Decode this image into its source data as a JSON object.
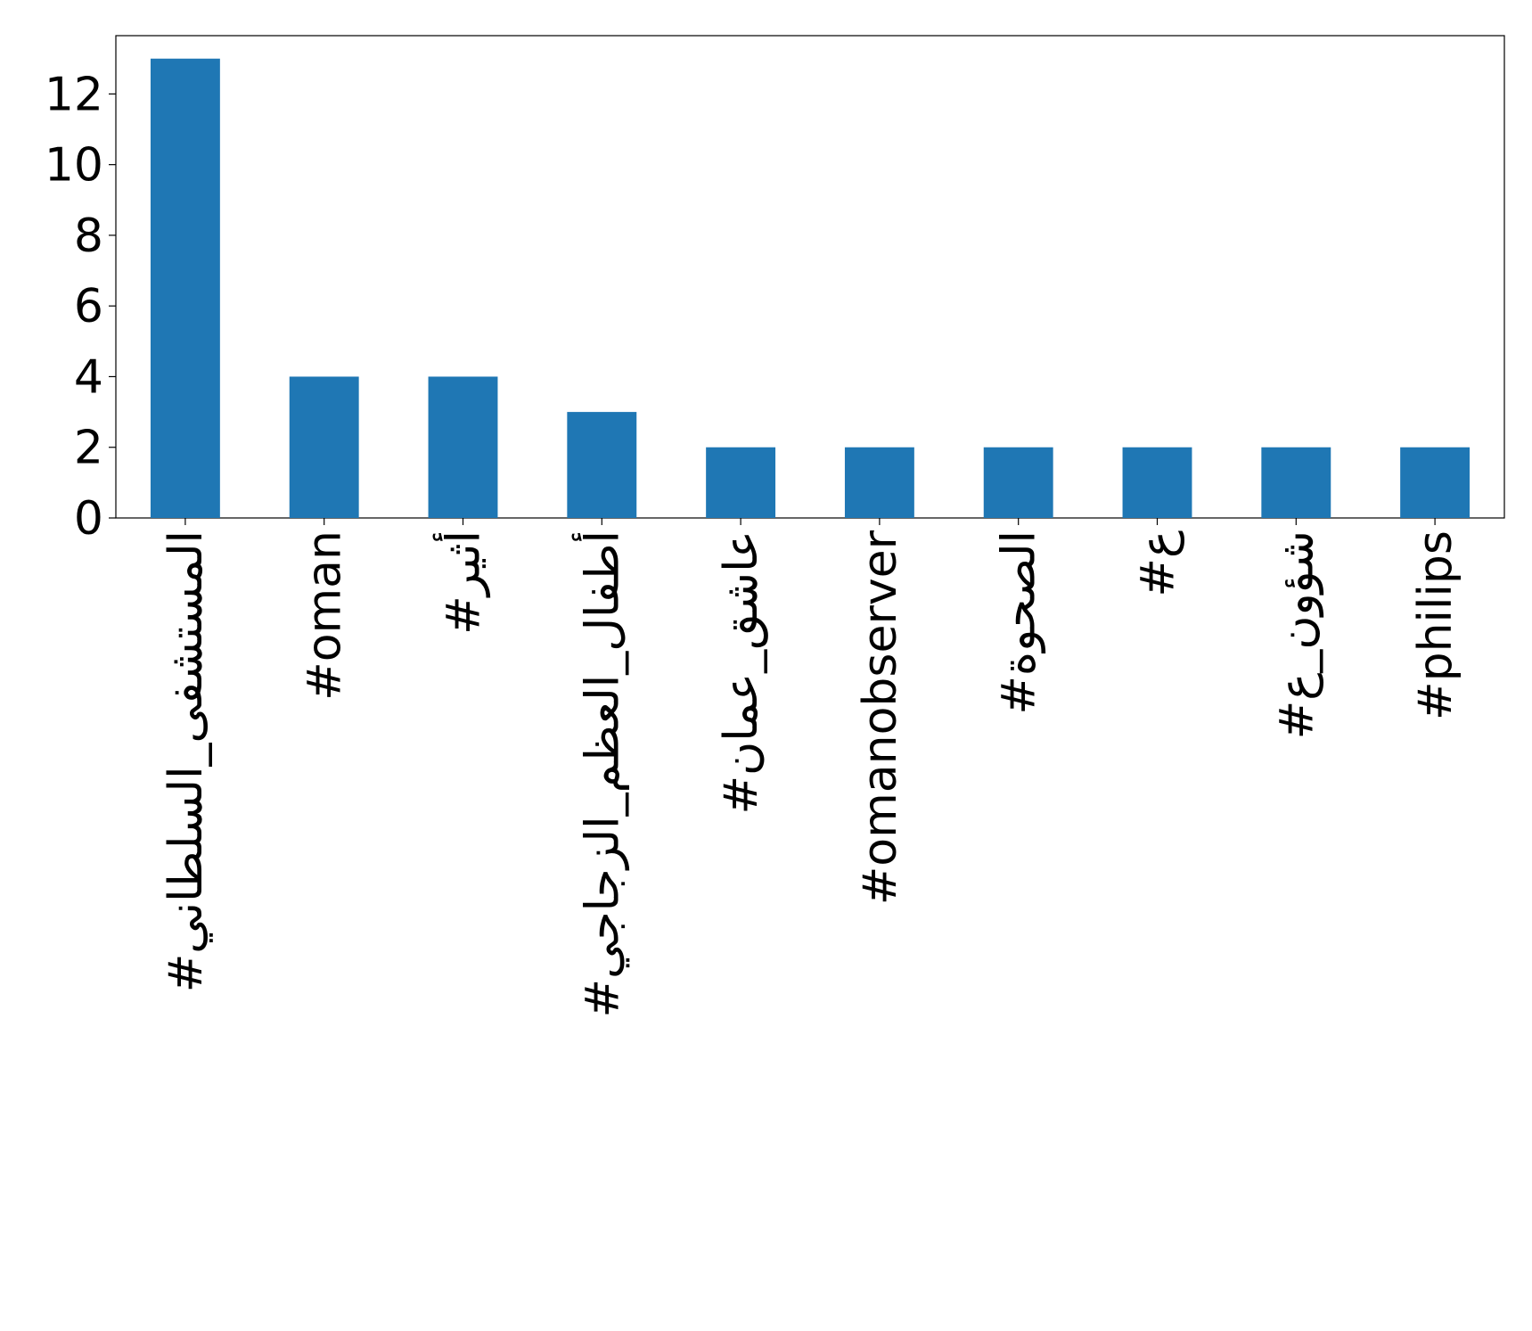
{
  "chart_data": {
    "type": "bar",
    "categories": [
      "#المستشفى_السلطاني",
      "#oman",
      "#أثير",
      "#أطفال_العظم_الزجاجي",
      "#عاشق_عمان",
      "#omanobserver",
      "#الصحوة",
      "#ع",
      "#شؤون_ع",
      "#philips"
    ],
    "values": [
      13,
      4,
      4,
      3,
      2,
      2,
      2,
      2,
      2,
      2
    ],
    "color": "#1f77b4",
    "ylim": [
      0,
      13.65
    ],
    "yticks": [
      0,
      2,
      4,
      6,
      8,
      10,
      12
    ],
    "grid": false
  }
}
